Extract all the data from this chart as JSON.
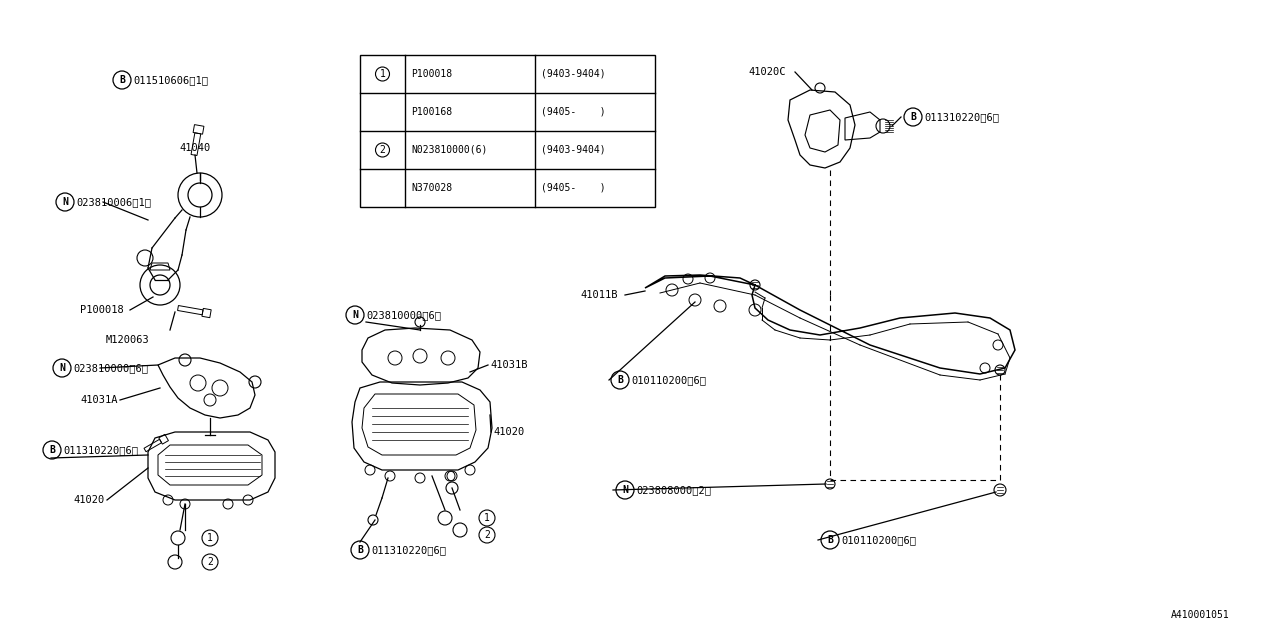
{
  "bg_color": "#ffffff",
  "fig_width": 12.8,
  "fig_height": 6.4,
  "watermark": "A410001051",
  "font": "monospace",
  "fs": 7.5,
  "table_rows": [
    [
      "1",
      "P100018",
      "(9403-9404)"
    ],
    [
      "",
      "P100168",
      "(9405-    )"
    ],
    [
      "2",
      "N023810000(6)",
      "(9403-9404)"
    ],
    [
      "",
      "N370028",
      "(9405-    )"
    ]
  ]
}
